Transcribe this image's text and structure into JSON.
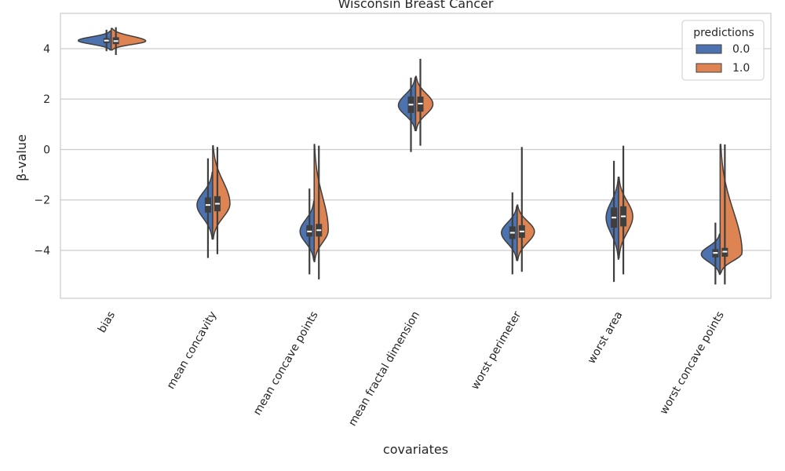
{
  "chart_data": {
    "type": "violin",
    "title": "Wisconsin Breast Cancer",
    "xlabel": "covariates",
    "ylabel": "β-value",
    "ylim": [
      -5.9,
      5.4
    ],
    "yticks": [
      4,
      2,
      0,
      -2,
      -4
    ],
    "ytick_labels": [
      "4",
      "2",
      "0",
      "−2",
      "−4"
    ],
    "grid": true,
    "split": true,
    "categories": [
      "bias",
      "mean concavity",
      "mean concave points",
      "mean fractal dimension",
      "worst perimeter",
      "worst area",
      "worst concave points"
    ],
    "legend": {
      "title": "predictions",
      "placement": "top-right"
    },
    "series": [
      {
        "name": "0.0",
        "color": "#4c72b0",
        "median": [
          4.32,
          -2.2,
          -3.25,
          1.78,
          -3.3,
          -2.7,
          -4.1
        ],
        "q1": [
          4.22,
          -2.5,
          -3.45,
          1.45,
          -3.55,
          -3.1,
          -4.28
        ],
        "q3": [
          4.42,
          -1.9,
          -3.0,
          2.1,
          -3.05,
          -2.3,
          -3.95
        ],
        "whisker_low": [
          3.9,
          -4.3,
          -4.95,
          -0.1,
          -4.95,
          -5.25,
          -5.35
        ],
        "whisker_high": [
          4.75,
          -0.35,
          -1.55,
          2.85,
          -1.7,
          -0.45,
          -2.9
        ],
        "kde_lo": [
          3.95,
          -3.55,
          -4.4,
          0.75,
          -4.4,
          -4.35,
          -4.95
        ],
        "kde_hi": [
          4.7,
          -0.9,
          -2.05,
          2.85,
          -2.25,
          -1.1,
          -3.35
        ],
        "kde_peak": [
          4.32,
          -2.2,
          -3.25,
          1.75,
          -3.3,
          -2.7,
          -4.15
        ],
        "kde_half_width": [
          42,
          20,
          18,
          22,
          20,
          16,
          24
        ]
      },
      {
        "name": "1.0",
        "color": "#dd8452",
        "median": [
          4.3,
          -2.15,
          -3.2,
          1.82,
          -3.25,
          -2.65,
          -4.05
        ],
        "q1": [
          4.18,
          -2.45,
          -3.45,
          1.5,
          -3.5,
          -3.05,
          -4.25
        ],
        "q3": [
          4.45,
          -1.85,
          -2.95,
          2.1,
          -3.0,
          -2.25,
          -3.9
        ],
        "whisker_low": [
          3.75,
          -4.15,
          -5.15,
          0.15,
          -4.85,
          -4.95,
          -5.35
        ],
        "whisker_high": [
          4.85,
          0.1,
          0.15,
          3.6,
          0.1,
          0.15,
          0.2
        ],
        "kde_lo": [
          3.95,
          -3.55,
          -4.45,
          0.75,
          -4.4,
          -4.3,
          -4.9
        ],
        "kde_hi": [
          4.8,
          0.15,
          0.2,
          2.9,
          -2.2,
          -1.1,
          0.2
        ],
        "kde_peak": [
          4.3,
          -2.15,
          -3.2,
          1.8,
          -3.25,
          -2.65,
          -4.1
        ],
        "kde_half_width": [
          44,
          22,
          18,
          22,
          22,
          18,
          28
        ]
      }
    ]
  }
}
